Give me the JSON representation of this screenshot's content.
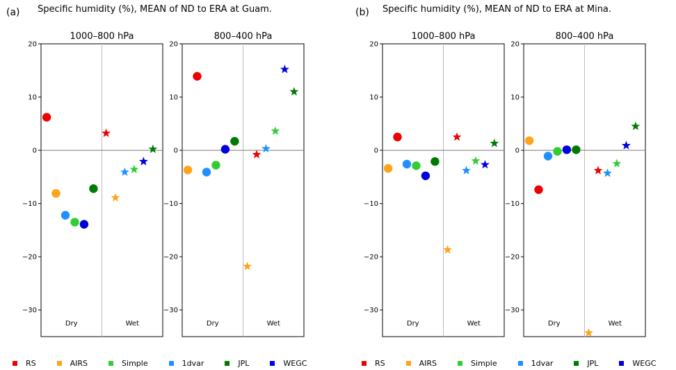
{
  "figure": {
    "panels": [
      {
        "letter": "(a)",
        "title": "Specific humidity (%), MEAN of ND to ERA at Guam."
      },
      {
        "letter": "(b)",
        "title": "Specific humidity (%), MEAN of ND to ERA at Mina."
      }
    ]
  },
  "legend": {
    "entries": [
      {
        "name": "RS",
        "color": "#ee0000"
      },
      {
        "name": "AIRS",
        "color": "#ffa31a"
      },
      {
        "name": "Simple",
        "color": "#33cc33"
      },
      {
        "name": "1dvar",
        "color": "#1e90ff"
      },
      {
        "name": "JPL",
        "color": "#007a00"
      },
      {
        "name": "WEGC",
        "color": "#0000dd"
      }
    ]
  },
  "chart_data": [
    {
      "type": "scatter",
      "panel": "(a)",
      "title": "1000–800 hPa",
      "categories": [
        "Dry",
        "Wet"
      ],
      "ylim": [
        -35,
        20
      ],
      "yticks": [
        20,
        10,
        0,
        -10,
        -20,
        -30
      ],
      "grid": false,
      "series": [
        {
          "name": "RS",
          "color": "#ee0000",
          "dry": 6.2,
          "wet": 3.2
        },
        {
          "name": "AIRS",
          "color": "#ffa31a",
          "dry": -8.1,
          "wet": -8.9
        },
        {
          "name": "1dvar",
          "color": "#1e90ff",
          "dry": -12.2,
          "wet": -4.1
        },
        {
          "name": "Simple",
          "color": "#33cc33",
          "dry": -13.5,
          "wet": -3.6
        },
        {
          "name": "WEGC",
          "color": "#0000dd",
          "dry": -13.9,
          "wet": -2.1
        },
        {
          "name": "JPL",
          "color": "#007a00",
          "dry": -7.2,
          "wet": 0.2
        }
      ]
    },
    {
      "type": "scatter",
      "panel": "(a)",
      "title": "800–400 hPa",
      "categories": [
        "Dry",
        "Wet"
      ],
      "ylim": [
        -35,
        20
      ],
      "yticks": [
        20,
        10,
        0,
        -10,
        -20,
        -30
      ],
      "grid": false,
      "series": [
        {
          "name": "AIRS",
          "color": "#ffa31a",
          "dry": -3.7,
          "wet": -21.8
        },
        {
          "name": "RS",
          "color": "#ee0000",
          "dry": 13.9,
          "wet": -0.8
        },
        {
          "name": "1dvar",
          "color": "#1e90ff",
          "dry": -4.1,
          "wet": 0.3
        },
        {
          "name": "Simple",
          "color": "#33cc33",
          "dry": -2.8,
          "wet": 3.6
        },
        {
          "name": "WEGC",
          "color": "#0000dd",
          "dry": 0.2,
          "wet": 15.2
        },
        {
          "name": "JPL",
          "color": "#007a00",
          "dry": 1.7,
          "wet": 11.0
        }
      ]
    },
    {
      "type": "scatter",
      "panel": "(b)",
      "title": "1000–800 hPa",
      "categories": [
        "Dry",
        "Wet"
      ],
      "ylim": [
        -35,
        20
      ],
      "yticks": [
        20,
        10,
        0,
        -10,
        -20,
        -30
      ],
      "grid": false,
      "series": [
        {
          "name": "AIRS",
          "color": "#ffa31a",
          "dry": -3.4,
          "wet": -18.7
        },
        {
          "name": "RS",
          "color": "#ee0000",
          "dry": 2.5,
          "wet": 2.5
        },
        {
          "name": "1dvar",
          "color": "#1e90ff",
          "dry": -2.6,
          "wet": -3.8
        },
        {
          "name": "Simple",
          "color": "#33cc33",
          "dry": -2.9,
          "wet": -2.0
        },
        {
          "name": "WEGC",
          "color": "#0000dd",
          "dry": -4.8,
          "wet": -2.7
        },
        {
          "name": "JPL",
          "color": "#007a00",
          "dry": -2.1,
          "wet": 1.3
        }
      ]
    },
    {
      "type": "scatter",
      "panel": "(b)",
      "title": "800–400 hPa",
      "categories": [
        "Dry",
        "Wet"
      ],
      "ylim": [
        -35,
        20
      ],
      "yticks": [
        20,
        10,
        0,
        -10,
        -20,
        -30
      ],
      "grid": false,
      "series": [
        {
          "name": "AIRS",
          "color": "#ffa31a",
          "dry": 1.8,
          "wet": -34.3
        },
        {
          "name": "RS",
          "color": "#ee0000",
          "dry": -7.4,
          "wet": -3.8
        },
        {
          "name": "1dvar",
          "color": "#1e90ff",
          "dry": -1.1,
          "wet": -4.3
        },
        {
          "name": "Simple",
          "color": "#33cc33",
          "dry": -0.2,
          "wet": -2.5
        },
        {
          "name": "WEGC",
          "color": "#0000dd",
          "dry": 0.1,
          "wet": 0.9
        },
        {
          "name": "JPL",
          "color": "#007a00",
          "dry": 0.1,
          "wet": 4.5
        }
      ]
    }
  ]
}
